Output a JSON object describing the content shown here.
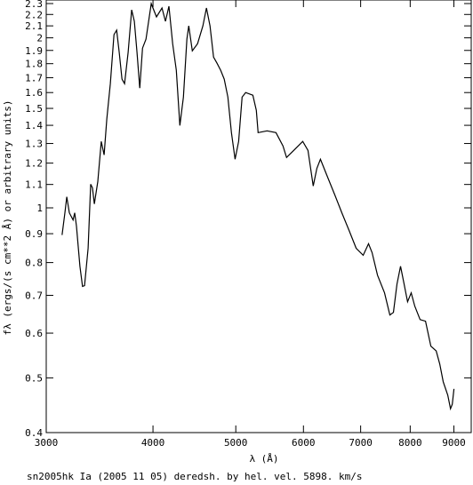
{
  "chart_data": {
    "type": "line",
    "xlabel": "λ (Å)",
    "ylabel": "fλ (ergs/(s cm**2 Å) or arbitrary units)",
    "caption": "sn2005hk Ia (2005 11 05) deredsh. by hel. vel.  5898. km/s",
    "xlog": true,
    "ylog": true,
    "color": "#000000",
    "xlim": [
      3000,
      9430
    ],
    "ylim": [
      0.4,
      2.3
    ],
    "xticks": [
      3000,
      4000,
      5000,
      6000,
      7000,
      8000,
      9000
    ],
    "yticks": [
      0.4,
      0.5,
      0.6,
      0.7,
      0.8,
      0.9,
      1,
      1.1,
      1.2,
      1.3,
      1.4,
      1.5,
      1.6,
      1.7,
      1.8,
      1.9,
      2,
      2.1,
      2.2,
      2.3
    ],
    "x": [
      3131,
      3155,
      3171,
      3193,
      3225,
      3239,
      3255,
      3285,
      3308,
      3326,
      3358,
      3382,
      3398,
      3415,
      3447,
      3480,
      3506,
      3532,
      3566,
      3601,
      3627,
      3652,
      3679,
      3705,
      3741,
      3777,
      3804,
      3831,
      3860,
      3889,
      3925,
      3981,
      4038,
      4098,
      4137,
      4176,
      4218,
      4259,
      4300,
      4342,
      4383,
      4405,
      4447,
      4511,
      4576,
      4620,
      4664,
      4709,
      4754,
      4800,
      4847,
      4895,
      4942,
      4990,
      5038,
      5086,
      5135,
      5235,
      5285,
      5310,
      5440,
      5572,
      5679,
      5733,
      5846,
      5988,
      6074,
      6161,
      6221,
      6281,
      6404,
      6529,
      6655,
      6785,
      6916,
      7049,
      7151,
      7220,
      7325,
      7466,
      7574,
      7647,
      7720,
      7794,
      7869,
      7944,
      8021,
      8099,
      8217,
      8337,
      8458,
      8580,
      8663,
      8745,
      8852,
      8917,
      8960,
      9002
    ],
    "values": [
      0.895,
      0.98,
      1.046,
      0.98,
      0.952,
      0.98,
      0.928,
      0.788,
      0.726,
      0.728,
      0.848,
      1.101,
      1.085,
      1.016,
      1.113,
      1.311,
      1.241,
      1.435,
      1.659,
      2.026,
      2.063,
      1.884,
      1.69,
      1.659,
      1.884,
      2.242,
      2.139,
      1.884,
      1.629,
      1.918,
      1.989,
      2.299,
      2.178,
      2.259,
      2.139,
      2.275,
      1.953,
      1.752,
      1.399,
      1.571,
      1.989,
      2.1,
      1.897,
      1.953,
      2.1,
      2.259,
      2.1,
      1.849,
      1.803,
      1.752,
      1.69,
      1.571,
      1.359,
      1.219,
      1.311,
      1.571,
      1.6,
      1.583,
      1.488,
      1.359,
      1.369,
      1.359,
      1.287,
      1.228,
      1.264,
      1.311,
      1.264,
      1.093,
      1.175,
      1.219,
      1.133,
      1.054,
      0.98,
      0.912,
      0.848,
      0.824,
      0.864,
      0.833,
      0.76,
      0.707,
      0.646,
      0.653,
      0.733,
      0.788,
      0.733,
      0.682,
      0.707,
      0.67,
      0.634,
      0.63,
      0.569,
      0.558,
      0.529,
      0.492,
      0.466,
      0.441,
      0.449,
      0.478
    ]
  }
}
